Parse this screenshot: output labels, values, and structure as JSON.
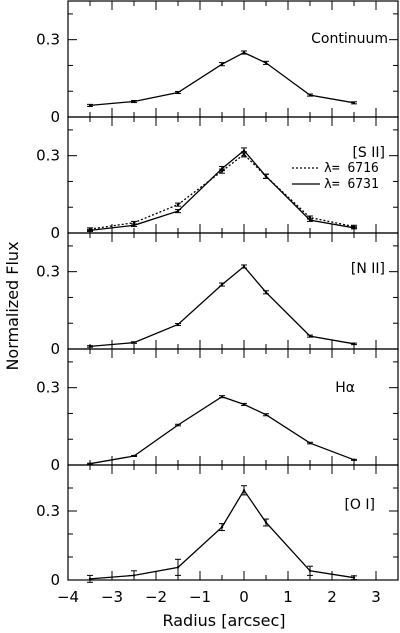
{
  "chart_data": {
    "type": "line",
    "xlabel": "Radius [arcsec]",
    "ylabel": "Normalized Flux",
    "xlim": [
      -4,
      3.5
    ],
    "xticks": [
      -4,
      -3,
      -2,
      -1,
      0,
      1,
      2,
      3
    ],
    "xtick_labels": [
      "−4",
      "−3",
      "−2",
      "−1",
      "0",
      "1",
      "2",
      "3"
    ],
    "grid": false,
    "panels": [
      {
        "label": "Continuum",
        "ylim": [
          0,
          0.45
        ],
        "yticks": [
          0,
          0.3
        ],
        "ytick_labels": [
          "0",
          "0.3"
        ],
        "series": [
          {
            "style": "solid",
            "x": [
              -3.5,
              -2.5,
              -1.5,
              -0.5,
              0.0,
              0.5,
              1.5,
              2.5
            ],
            "y": [
              0.045,
              0.06,
              0.095,
              0.205,
              0.25,
              0.21,
              0.085,
              0.055
            ],
            "err": [
              0.004,
              0.004,
              0.004,
              0.006,
              0.006,
              0.006,
              0.004,
              0.004
            ]
          }
        ]
      },
      {
        "label": "[S II]",
        "ylim": [
          0,
          0.45
        ],
        "yticks": [
          0,
          0.3
        ],
        "ytick_labels": [
          "0",
          "0.3"
        ],
        "legend": [
          {
            "style": "dotted",
            "text": "λ= 6716"
          },
          {
            "style": "solid",
            "text": "λ= 6731"
          }
        ],
        "series": [
          {
            "name": "λ= 6716",
            "style": "dotted",
            "x": [
              -3.5,
              -2.5,
              -1.5,
              -0.5,
              0.0,
              0.5,
              1.5,
              2.5
            ],
            "y": [
              0.015,
              0.04,
              0.11,
              0.24,
              0.305,
              0.22,
              0.06,
              0.025
            ],
            "err": [
              0.005,
              0.005,
              0.006,
              0.008,
              0.01,
              0.008,
              0.006,
              0.005
            ]
          },
          {
            "name": "λ= 6731",
            "style": "solid",
            "x": [
              -3.5,
              -2.5,
              -1.5,
              -0.5,
              0.0,
              0.5,
              1.5,
              2.5
            ],
            "y": [
              0.01,
              0.03,
              0.085,
              0.25,
              0.32,
              0.22,
              0.05,
              0.02
            ],
            "err": [
              0.004,
              0.005,
              0.006,
              0.008,
              0.01,
              0.008,
              0.005,
              0.004
            ]
          }
        ]
      },
      {
        "label": "[N II]",
        "ylim": [
          0,
          0.45
        ],
        "yticks": [
          0,
          0.3
        ],
        "ytick_labels": [
          "0",
          "0.3"
        ],
        "series": [
          {
            "style": "solid",
            "x": [
              -3.5,
              -2.5,
              -1.5,
              -0.5,
              0.0,
              0.5,
              1.5,
              2.5
            ],
            "y": [
              0.01,
              0.025,
              0.095,
              0.25,
              0.32,
              0.22,
              0.05,
              0.02
            ],
            "err": [
              0.003,
              0.003,
              0.004,
              0.006,
              0.006,
              0.006,
              0.004,
              0.003
            ]
          }
        ]
      },
      {
        "label": "Hα",
        "ylim": [
          0,
          0.45
        ],
        "yticks": [
          0,
          0.3
        ],
        "ytick_labels": [
          "0",
          "0.3"
        ],
        "series": [
          {
            "style": "solid",
            "x": [
              -3.5,
              -2.5,
              -1.5,
              -0.5,
              0.0,
              0.5,
              1.5,
              2.5
            ],
            "y": [
              0.005,
              0.035,
              0.155,
              0.265,
              0.235,
              0.195,
              0.085,
              0.02
            ],
            "err": [
              0.002,
              0.002,
              0.003,
              0.004,
              0.004,
              0.004,
              0.003,
              0.002
            ]
          }
        ]
      },
      {
        "label": "[O I]",
        "ylim": [
          0,
          0.5
        ],
        "yticks": [
          0,
          0.3
        ],
        "ytick_labels": [
          "0",
          "0.3"
        ],
        "series": [
          {
            "style": "solid",
            "x": [
              -3.5,
              -2.5,
              -1.5,
              -0.5,
              0.0,
              0.5,
              1.5,
              2.5
            ],
            "y": [
              0.005,
              0.02,
              0.055,
              0.23,
              0.39,
              0.25,
              0.04,
              0.01
            ],
            "err": [
              0.015,
              0.02,
              0.035,
              0.015,
              0.02,
              0.015,
              0.02,
              0.008
            ]
          }
        ]
      }
    ]
  }
}
